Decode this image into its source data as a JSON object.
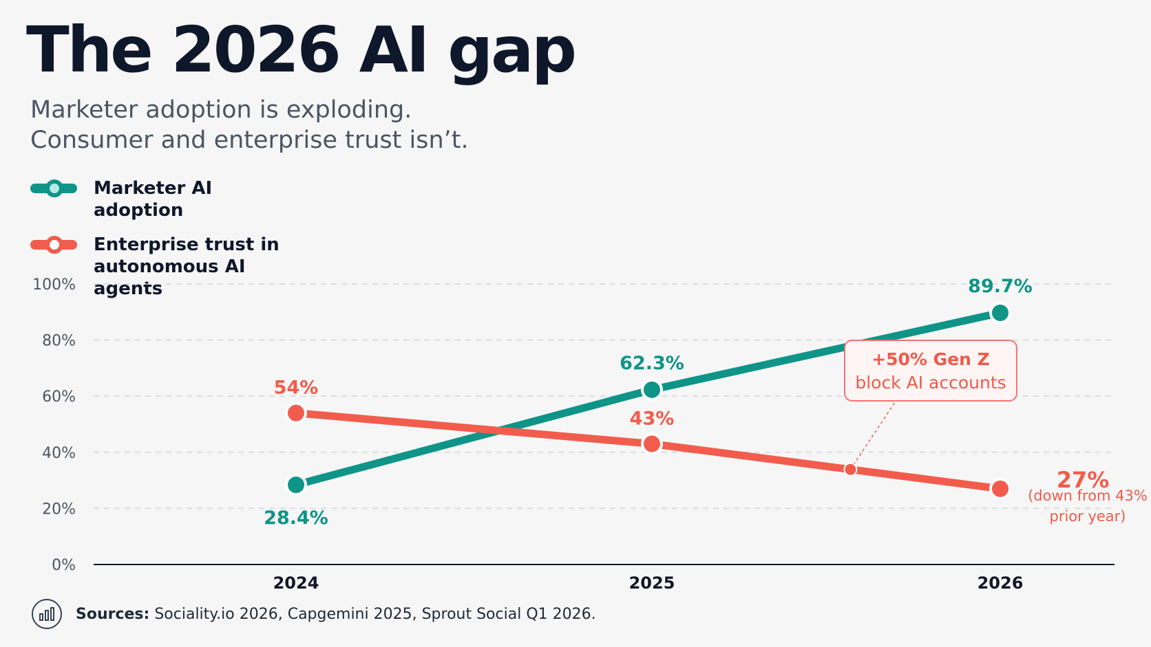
{
  "title": "The 2026 AI gap",
  "subtitle": [
    "Marketer adoption is exploding.",
    "Consumer and enterprise trust isn’t."
  ],
  "sources": {
    "label": "Sources:",
    "text": "Sociality.io 2026, Capgemini 2025, Sprout Social Q1 2026.",
    "icon": "bar-chart-icon"
  },
  "chart_data": {
    "type": "line",
    "categories": [
      "2024",
      "2025",
      "2026"
    ],
    "y_ticks": [
      "0%",
      "20%",
      "40%",
      "60%",
      "80%",
      "100%"
    ],
    "ylim": [
      0,
      100
    ],
    "grid": true,
    "legend_placement": "top-left",
    "series": [
      {
        "name": "Marketer AI adoption",
        "color": "#0f9488",
        "values": [
          28.4,
          62.3,
          89.7
        ],
        "labels": [
          "28.4%",
          "62.3%",
          "89.7%"
        ]
      },
      {
        "name": "Enterprise trust in autonomous AI agents",
        "color": "#f25c4c",
        "values": [
          54,
          43,
          27
        ],
        "labels": [
          "54%",
          "43%",
          "27%"
        ]
      }
    ],
    "annotations": {
      "callout": {
        "title": "+50% Gen Z",
        "text": "block AI accounts"
      },
      "note": "(down from 43% prior year)"
    }
  }
}
